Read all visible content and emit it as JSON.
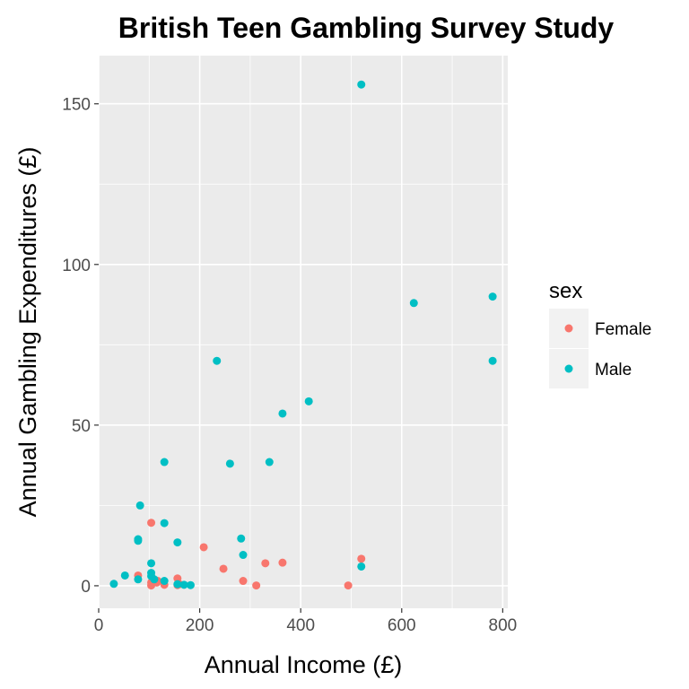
{
  "chart_data": {
    "type": "scatter",
    "title": "British Teen Gambling Survey Study",
    "xlabel": "Annual Income (£)",
    "ylabel": "Annual Gambling Expenditures (£)",
    "xlim": [
      0,
      810
    ],
    "ylim": [
      -7,
      165
    ],
    "x_ticks": [
      0,
      200,
      400,
      600,
      800
    ],
    "y_ticks": [
      0,
      50,
      100,
      150
    ],
    "x_tick_labels": [
      "0",
      "200",
      "400",
      "600",
      "800"
    ],
    "y_tick_labels": [
      "0",
      "50",
      "100",
      "150"
    ],
    "grid": true,
    "legend": {
      "title": "sex",
      "position": "right",
      "entries": [
        {
          "label": "Female",
          "color": "#F8766D"
        },
        {
          "label": "Male",
          "color": "#00BFC4"
        }
      ]
    },
    "series": [
      {
        "name": "Female",
        "color": "#F8766D",
        "points": [
          [
            104,
            19.6
          ],
          [
            78,
            3.2
          ],
          [
            104,
            1.0
          ],
          [
            104,
            0.1
          ],
          [
            117,
            1.5
          ],
          [
            130,
            0.3
          ],
          [
            156,
            2.3
          ],
          [
            156,
            0.2
          ],
          [
            208,
            12.0
          ],
          [
            247,
            5.3
          ],
          [
            286,
            1.5
          ],
          [
            312,
            0.1
          ],
          [
            330,
            7.0
          ],
          [
            364,
            7.2
          ],
          [
            494,
            0.1
          ],
          [
            520,
            8.4
          ],
          [
            115,
            1.0
          ],
          [
            160,
            0.5
          ]
        ]
      },
      {
        "name": "Male",
        "color": "#00BFC4",
        "points": [
          [
            30,
            0.6
          ],
          [
            52,
            3.2
          ],
          [
            78,
            2.0
          ],
          [
            78,
            14.0
          ],
          [
            78,
            14.5
          ],
          [
            82,
            25.0
          ],
          [
            104,
            7.0
          ],
          [
            104,
            3.0
          ],
          [
            110,
            2.0
          ],
          [
            130,
            38.5
          ],
          [
            130,
            19.5
          ],
          [
            130,
            1.5
          ],
          [
            156,
            13.5
          ],
          [
            156,
            0.5
          ],
          [
            169,
            0.3
          ],
          [
            182,
            0.2
          ],
          [
            234,
            70.0
          ],
          [
            260,
            38.0
          ],
          [
            282,
            14.7
          ],
          [
            286,
            9.6
          ],
          [
            338,
            38.5
          ],
          [
            364,
            53.6
          ],
          [
            416,
            57.4
          ],
          [
            520,
            156.0
          ],
          [
            520,
            6.0
          ],
          [
            624,
            88.0
          ],
          [
            780,
            90.0
          ],
          [
            780,
            70.0
          ],
          [
            104,
            4.0
          ]
        ]
      }
    ]
  }
}
